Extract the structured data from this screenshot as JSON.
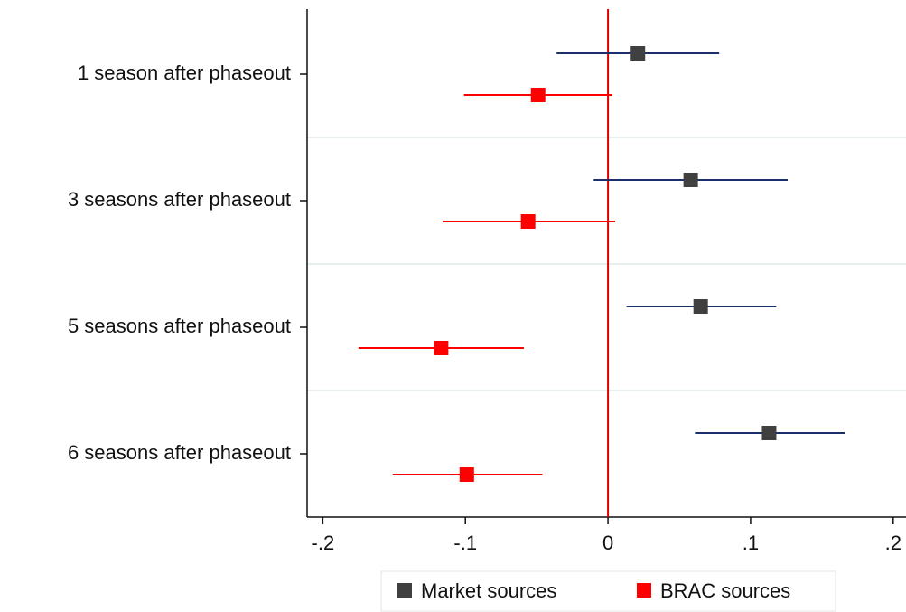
{
  "chart_data": {
    "type": "coefplot",
    "categories": [
      "1 season after phaseout",
      "3 seasons after phaseout",
      "5 seasons after phaseout",
      "6 seasons after phaseout"
    ],
    "series": [
      {
        "name": "Market sources",
        "color": "#404040",
        "ci_color": "#1a2f6b",
        "values": [
          0.021,
          0.058,
          0.065,
          0.113
        ],
        "lower": [
          -0.036,
          -0.01,
          0.013,
          0.061
        ],
        "upper": [
          0.078,
          0.126,
          0.118,
          0.166
        ]
      },
      {
        "name": "BRAC sources",
        "color": "#ff0000",
        "ci_color": "#ff0000",
        "values": [
          -0.049,
          -0.056,
          -0.117,
          -0.099
        ],
        "lower": [
          -0.101,
          -0.116,
          -0.175,
          -0.151
        ],
        "upper": [
          0.003,
          0.005,
          -0.059,
          -0.046
        ]
      }
    ],
    "xlim": [
      -0.211,
      0.209
    ],
    "xticks": [
      {
        "value": -0.2,
        "label": "-.2"
      },
      {
        "value": -0.1,
        "label": "-.1"
      },
      0,
      {
        "value": 0.1,
        "label": ".1"
      },
      {
        "value": 0.2,
        "label": ".2"
      }
    ],
    "xline": 0,
    "xline_color": "#e00000"
  }
}
